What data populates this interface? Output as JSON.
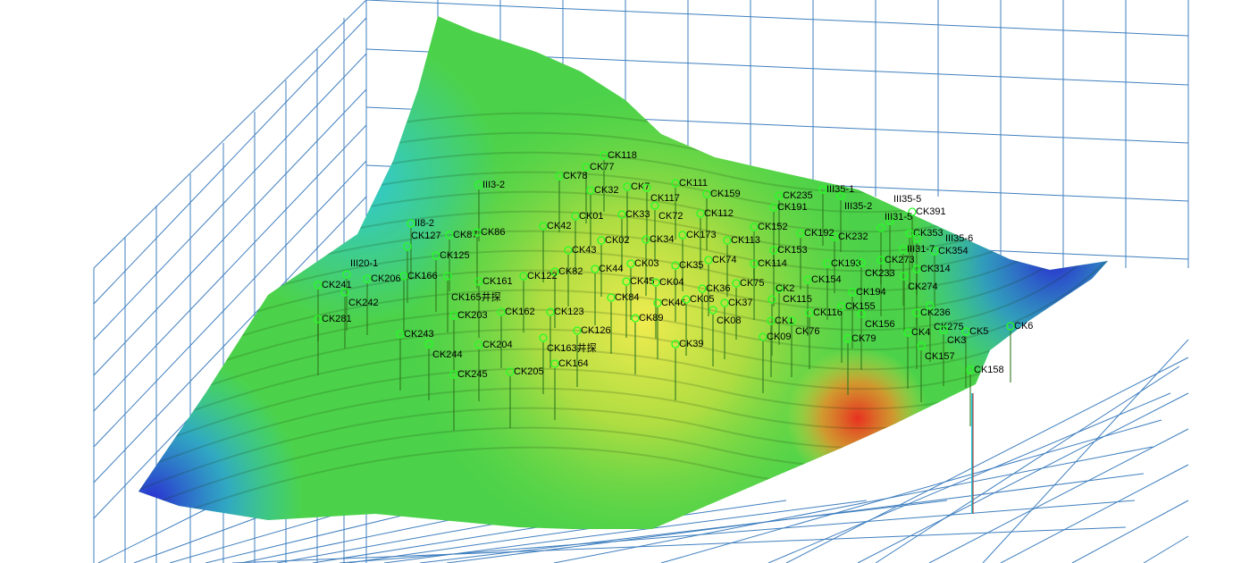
{
  "view": {
    "type": "3d-terrain-surface",
    "grid_color": "#3f7fbf",
    "colormap": [
      "#2a2fd0",
      "#26c8e0",
      "#3fd84a",
      "#9ad83a",
      "#f0e040",
      "#e83020"
    ],
    "borehole_marker_color": "#22ff22"
  },
  "boreholes": [
    "CK118",
    "CK77",
    "CK78",
    "CK32",
    "CK7",
    "CK117",
    "CK111",
    "CK159",
    "CK235",
    "CK191",
    "CK72",
    "CK33",
    "CK01",
    "CK42",
    "CK112",
    "CK152",
    "CK232",
    "CK02",
    "CK34",
    "CK43",
    "CK74",
    "CK114",
    "CK35",
    "CK03",
    "CK44",
    "CK45",
    "CK04",
    "CK36",
    "CK75",
    "CK193",
    "CK154",
    "CK353",
    "CK354",
    "CK314",
    "CK274",
    "CK391",
    "CK115",
    "CK194",
    "CK84",
    "CK46",
    "CK05",
    "CK37",
    "CK08",
    "CK2",
    "CK116",
    "CK155",
    "CK156",
    "CK236",
    "CK275",
    "CK1",
    "CK76",
    "CK09",
    "CK79",
    "CK4",
    "CK3",
    "CK5",
    "CK6",
    "CK157",
    "CK158",
    "CK89",
    "CK126",
    "CK39",
    "CK164",
    "CK241",
    "CK242",
    "CK206",
    "CK166",
    "CK161",
    "CK82",
    "CK123",
    "CK162",
    "CK281",
    "CK204",
    "CK245",
    "CK125",
    "CK127",
    "CK87",
    "CK86",
    "II8-2",
    "III3-2",
    "III35-1",
    "III35-2",
    "III35-5",
    "III31-5",
    "III31-7",
    "III35-6",
    "III20-1",
    "CK273",
    "CK233",
    "CK243",
    "CK244",
    "CK203",
    "CK205",
    "CK163井探",
    "CK165井探",
    "CK122",
    "CK173",
    "CK113",
    "CK153",
    "CK192"
  ]
}
